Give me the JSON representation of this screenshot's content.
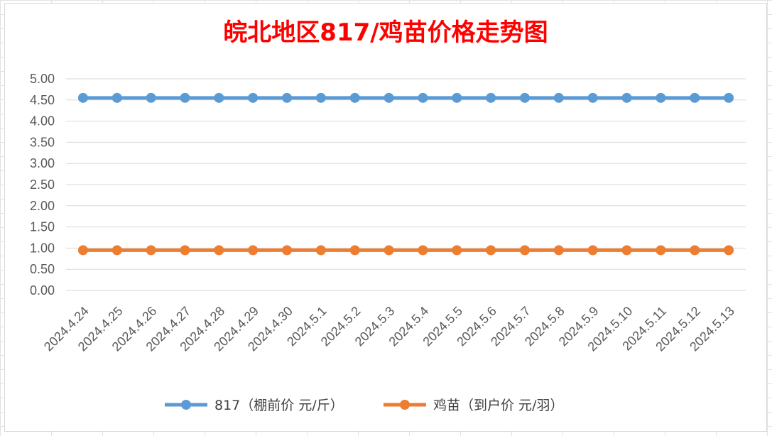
{
  "chart_data": {
    "type": "line",
    "title": "皖北地区817/鸡苗价格走势图",
    "title_color": "#ff0000",
    "xlabel": "",
    "ylabel": "",
    "categories": [
      "2024.4.24",
      "2024.4.25",
      "2024.4.26",
      "2024.4.27",
      "2024.4.28",
      "2024.4.29",
      "2024.4.30",
      "2024.5.1",
      "2024.5.2",
      "2024.5.3",
      "2024.5.4",
      "2024.5.5",
      "2024.5.6",
      "2024.5.7",
      "2024.5.8",
      "2024.5.9",
      "2024.5.10",
      "2024.5.11",
      "2024.5.12",
      "2024.5.13"
    ],
    "yticks": [
      "0.00",
      "0.50",
      "1.00",
      "1.50",
      "2.00",
      "2.50",
      "3.00",
      "3.50",
      "4.00",
      "4.50",
      "5.00"
    ],
    "ylim": [
      0,
      5
    ],
    "grid": "horizontal",
    "legend_position": "bottom",
    "series": [
      {
        "name": "817（棚前价 元/斤）",
        "color": "#5b9bd5",
        "values": [
          4.55,
          4.55,
          4.55,
          4.55,
          4.55,
          4.55,
          4.55,
          4.55,
          4.55,
          4.55,
          4.55,
          4.55,
          4.55,
          4.55,
          4.55,
          4.55,
          4.55,
          4.55,
          4.55,
          4.55
        ]
      },
      {
        "name": "鸡苗（到户价 元/羽）",
        "color": "#ed7d31",
        "values": [
          0.95,
          0.95,
          0.95,
          0.95,
          0.95,
          0.95,
          0.95,
          0.95,
          0.95,
          0.95,
          0.95,
          0.95,
          0.95,
          0.95,
          0.95,
          0.95,
          0.95,
          0.95,
          0.95,
          0.95
        ]
      }
    ]
  }
}
